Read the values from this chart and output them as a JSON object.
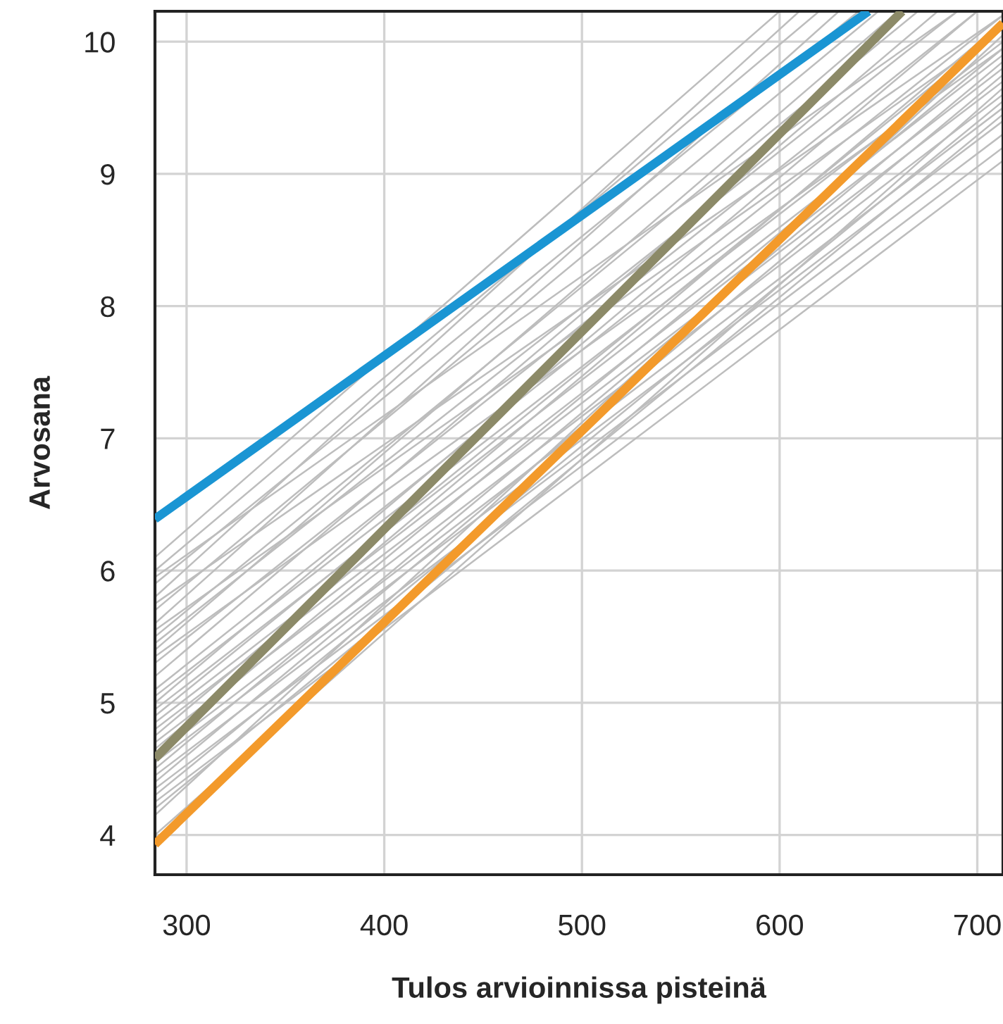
{
  "chart_data": {
    "type": "line",
    "xlabel": "Tulos arvioinnissa pisteinä",
    "ylabel": "Arvosana",
    "xlim": [
      284,
      713
    ],
    "ylim": [
      3.7,
      10.23
    ],
    "xticks": [
      300,
      400,
      500,
      600,
      700
    ],
    "yticks": [
      4,
      5,
      6,
      7,
      8,
      9,
      10
    ],
    "grid": true,
    "legend": false,
    "marker": "none",
    "line_style": "solid",
    "series": [
      {
        "color": "#bdbdbd",
        "x": [
          284,
          600
        ],
        "values": [
          6.1,
          10.23
        ]
      },
      {
        "color": "#bdbdbd",
        "x": [
          284,
          620
        ],
        "values": [
          6.0,
          10.23
        ]
      },
      {
        "color": "#bdbdbd",
        "x": [
          284,
          640
        ],
        "values": [
          5.9,
          10.23
        ]
      },
      {
        "color": "#bdbdbd",
        "x": [
          284,
          610
        ],
        "values": [
          5.8,
          10.23
        ]
      },
      {
        "color": "#bdbdbd",
        "x": [
          284,
          650
        ],
        "values": [
          5.7,
          10.23
        ]
      },
      {
        "color": "#bdbdbd",
        "x": [
          284,
          630
        ],
        "values": [
          5.6,
          10.23
        ]
      },
      {
        "color": "#bdbdbd",
        "x": [
          284,
          670
        ],
        "values": [
          5.5,
          10.23
        ]
      },
      {
        "color": "#bdbdbd",
        "x": [
          284,
          690
        ],
        "values": [
          5.45,
          10.23
        ]
      },
      {
        "color": "#bdbdbd",
        "x": [
          284,
          660
        ],
        "values": [
          5.4,
          10.23
        ]
      },
      {
        "color": "#bdbdbd",
        "x": [
          284,
          700
        ],
        "values": [
          5.3,
          10.23
        ]
      },
      {
        "color": "#bdbdbd",
        "x": [
          284,
          680
        ],
        "values": [
          5.2,
          10.23
        ]
      },
      {
        "color": "#bdbdbd",
        "x": [
          284,
          713
        ],
        "values": [
          5.1,
          10.2
        ]
      },
      {
        "color": "#bdbdbd",
        "x": [
          284,
          713
        ],
        "values": [
          5.05,
          10.0
        ]
      },
      {
        "color": "#bdbdbd",
        "x": [
          284,
          700
        ],
        "values": [
          5.0,
          10.23
        ]
      },
      {
        "color": "#bdbdbd",
        "x": [
          284,
          713
        ],
        "values": [
          4.95,
          9.9
        ]
      },
      {
        "color": "#bdbdbd",
        "x": [
          284,
          713
        ],
        "values": [
          4.9,
          10.1
        ]
      },
      {
        "color": "#bdbdbd",
        "x": [
          284,
          713
        ],
        "values": [
          4.85,
          9.8
        ]
      },
      {
        "color": "#bdbdbd",
        "x": [
          284,
          713
        ],
        "values": [
          4.8,
          9.7
        ]
      },
      {
        "color": "#bdbdbd",
        "x": [
          284,
          713
        ],
        "values": [
          4.75,
          10.15
        ]
      },
      {
        "color": "#bdbdbd",
        "x": [
          284,
          713
        ],
        "values": [
          4.7,
          9.6
        ]
      },
      {
        "color": "#bdbdbd",
        "x": [
          284,
          713
        ],
        "values": [
          4.65,
          9.95
        ]
      },
      {
        "color": "#bdbdbd",
        "x": [
          284,
          713
        ],
        "values": [
          4.6,
          9.5
        ]
      },
      {
        "color": "#bdbdbd",
        "x": [
          284,
          713
        ],
        "values": [
          4.55,
          9.4
        ]
      },
      {
        "color": "#bdbdbd",
        "x": [
          284,
          713
        ],
        "values": [
          4.5,
          9.85
        ]
      },
      {
        "color": "#bdbdbd",
        "x": [
          284,
          713
        ],
        "values": [
          4.45,
          9.3
        ]
      },
      {
        "color": "#bdbdbd",
        "x": [
          284,
          713
        ],
        "values": [
          4.4,
          9.75
        ]
      },
      {
        "color": "#bdbdbd",
        "x": [
          284,
          713
        ],
        "values": [
          4.35,
          9.2
        ]
      },
      {
        "color": "#bdbdbd",
        "x": [
          284,
          713
        ],
        "values": [
          4.3,
          9.55
        ]
      },
      {
        "color": "#bdbdbd",
        "x": [
          284,
          713
        ],
        "values": [
          4.25,
          9.1
        ]
      },
      {
        "color": "#bdbdbd",
        "x": [
          284,
          713
        ],
        "values": [
          4.2,
          9.45
        ]
      },
      {
        "color": "#bdbdbd",
        "x": [
          284,
          713
        ],
        "values": [
          4.15,
          10.05
        ]
      },
      {
        "color": "#bdbdbd",
        "x": [
          284,
          713
        ],
        "values": [
          5.75,
          10.2
        ]
      },
      {
        "color": "#bdbdbd",
        "x": [
          284,
          713
        ],
        "values": [
          5.55,
          10.1
        ]
      },
      {
        "color": "#bdbdbd",
        "x": [
          284,
          713
        ],
        "values": [
          5.35,
          9.95
        ]
      },
      {
        "color": "#bdbdbd",
        "x": [
          284,
          690
        ],
        "values": [
          5.95,
          10.23
        ]
      },
      {
        "color": "#bdbdbd",
        "x": [
          284,
          713
        ],
        "values": [
          4.0,
          9.65
        ]
      },
      {
        "color": "#1a95d3",
        "x": [
          284,
          645
        ],
        "values": [
          6.39,
          10.23
        ]
      },
      {
        "color": "#8c8a68",
        "x": [
          284,
          662
        ],
        "values": [
          4.58,
          10.23
        ]
      },
      {
        "color": "#f39a2b",
        "x": [
          284,
          713
        ],
        "values": [
          3.93,
          10.14
        ]
      }
    ]
  }
}
